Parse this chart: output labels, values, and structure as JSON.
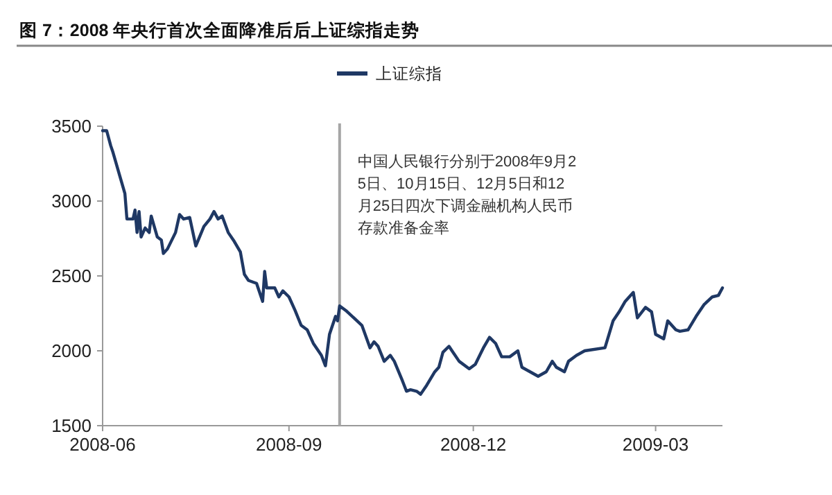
{
  "chart_data": {
    "type": "line",
    "title": "图 7：2008 年央行首次全面降准后后上证综指走势",
    "legend": "top",
    "grid": false,
    "marker": "none",
    "line_style": "solid",
    "xlim": [
      "2008-06-01",
      "2009-04-03"
    ],
    "xticks": [
      {
        "value": "2008-06-01",
        "label": "2008-06"
      },
      {
        "value": "2008-09-01",
        "label": "2008-09"
      },
      {
        "value": "2008-12-01",
        "label": "2008-12"
      },
      {
        "value": "2009-03-01",
        "label": "2009-03"
      }
    ],
    "ylim": [
      1500,
      3500
    ],
    "yticks": [
      1500,
      2000,
      2500,
      3000,
      3500
    ],
    "ref_lines": [
      {
        "axis": "x",
        "value": "2008-09-26",
        "label": "中国人民银行分别于2008年9月25日、10月15日、12月5日和12月25日四次下调金融机构人民币存款准备金率",
        "color": "#a6a6a6"
      }
    ],
    "x": [
      "2008-06-01",
      "2008-06-03",
      "2008-06-05",
      "2008-06-06",
      "2008-06-12",
      "2008-06-13",
      "2008-06-16",
      "2008-06-17",
      "2008-06-18",
      "2008-06-19",
      "2008-06-20",
      "2008-06-22",
      "2008-06-24",
      "2008-06-25",
      "2008-06-28",
      "2008-06-30",
      "2008-07-01",
      "2008-07-03",
      "2008-07-07",
      "2008-07-09",
      "2008-07-11",
      "2008-07-14",
      "2008-07-17",
      "2008-07-21",
      "2008-07-24",
      "2008-07-26",
      "2008-07-28",
      "2008-07-30",
      "2008-08-02",
      "2008-08-05",
      "2008-08-08",
      "2008-08-10",
      "2008-08-12",
      "2008-08-16",
      "2008-08-19",
      "2008-08-20",
      "2008-08-21",
      "2008-08-25",
      "2008-08-27",
      "2008-08-29",
      "2008-09-01",
      "2008-09-04",
      "2008-09-07",
      "2008-09-10",
      "2008-09-13",
      "2008-09-17",
      "2008-09-19",
      "2008-09-21",
      "2008-09-24",
      "2008-09-25",
      "2008-09-26",
      "2008-09-29",
      "2008-10-03",
      "2008-10-07",
      "2008-10-11",
      "2008-10-13",
      "2008-10-15",
      "2008-10-18",
      "2008-10-21",
      "2008-10-23",
      "2008-10-27",
      "2008-10-29",
      "2008-10-31",
      "2008-11-03",
      "2008-11-05",
      "2008-11-08",
      "2008-11-12",
      "2008-11-14",
      "2008-11-16",
      "2008-11-19",
      "2008-11-21",
      "2008-11-24",
      "2008-11-29",
      "2008-12-02",
      "2008-12-06",
      "2008-12-09",
      "2008-12-12",
      "2008-12-15",
      "2008-12-19",
      "2008-12-23",
      "2008-12-25",
      "2008-12-29",
      "2009-01-02",
      "2009-01-06",
      "2009-01-09",
      "2009-01-11",
      "2009-01-15",
      "2009-01-17",
      "2009-01-21",
      "2009-01-25",
      "2009-02-04",
      "2009-02-08",
      "2009-02-11",
      "2009-02-14",
      "2009-02-18",
      "2009-02-20",
      "2009-02-24",
      "2009-02-27",
      "2009-03-01",
      "2009-03-05",
      "2009-03-07",
      "2009-03-11",
      "2009-03-13",
      "2009-03-17",
      "2009-03-21",
      "2009-03-25",
      "2009-03-29",
      "2009-04-01",
      "2009-04-03"
    ],
    "series": [
      {
        "name": "上证综指",
        "color": "#1f3864",
        "values": [
          3470,
          3470,
          3370,
          3330,
          3050,
          2880,
          2880,
          2940,
          2790,
          2930,
          2760,
          2820,
          2790,
          2900,
          2760,
          2740,
          2650,
          2680,
          2790,
          2910,
          2880,
          2890,
          2700,
          2830,
          2880,
          2930,
          2880,
          2900,
          2790,
          2730,
          2660,
          2510,
          2470,
          2450,
          2330,
          2530,
          2420,
          2420,
          2360,
          2400,
          2360,
          2270,
          2170,
          2140,
          2050,
          1970,
          1900,
          2110,
          2230,
          2200,
          2300,
          2270,
          2220,
          2170,
          2020,
          2060,
          2030,
          1930,
          1970,
          1930,
          1800,
          1730,
          1740,
          1730,
          1710,
          1770,
          1860,
          1890,
          1990,
          2030,
          1990,
          1930,
          1880,
          1910,
          2020,
          2090,
          2050,
          1960,
          1960,
          2000,
          1890,
          1860,
          1830,
          1860,
          1930,
          1890,
          1860,
          1930,
          1970,
          2000,
          2020,
          2200,
          2260,
          2330,
          2390,
          2220,
          2290,
          2260,
          2110,
          2080,
          2200,
          2140,
          2130,
          2140,
          2230,
          2310,
          2360,
          2370,
          2420
        ]
      }
    ]
  }
}
